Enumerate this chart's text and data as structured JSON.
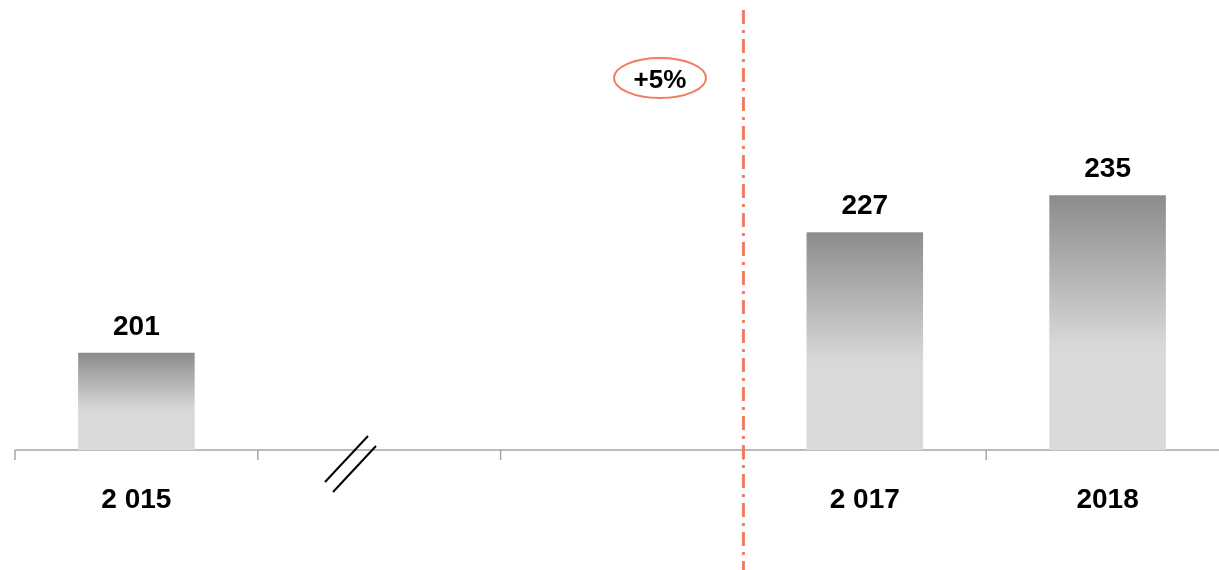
{
  "chart_data": {
    "type": "bar",
    "categories": [
      "2 015",
      null,
      null,
      "2 017",
      "2018"
    ],
    "values": [
      201,
      null,
      null,
      227,
      235
    ],
    "color": "#8c8c8c",
    "ylim": [
      180,
      275
    ],
    "tick_labels": "x",
    "data_labels": true,
    "annotations": [
      "+5%"
    ],
    "ref_lines": [
      {
        "axis": "x",
        "value": "2 017",
        "color": "#f07c63",
        "line_style": "dashed"
      }
    ]
  }
}
